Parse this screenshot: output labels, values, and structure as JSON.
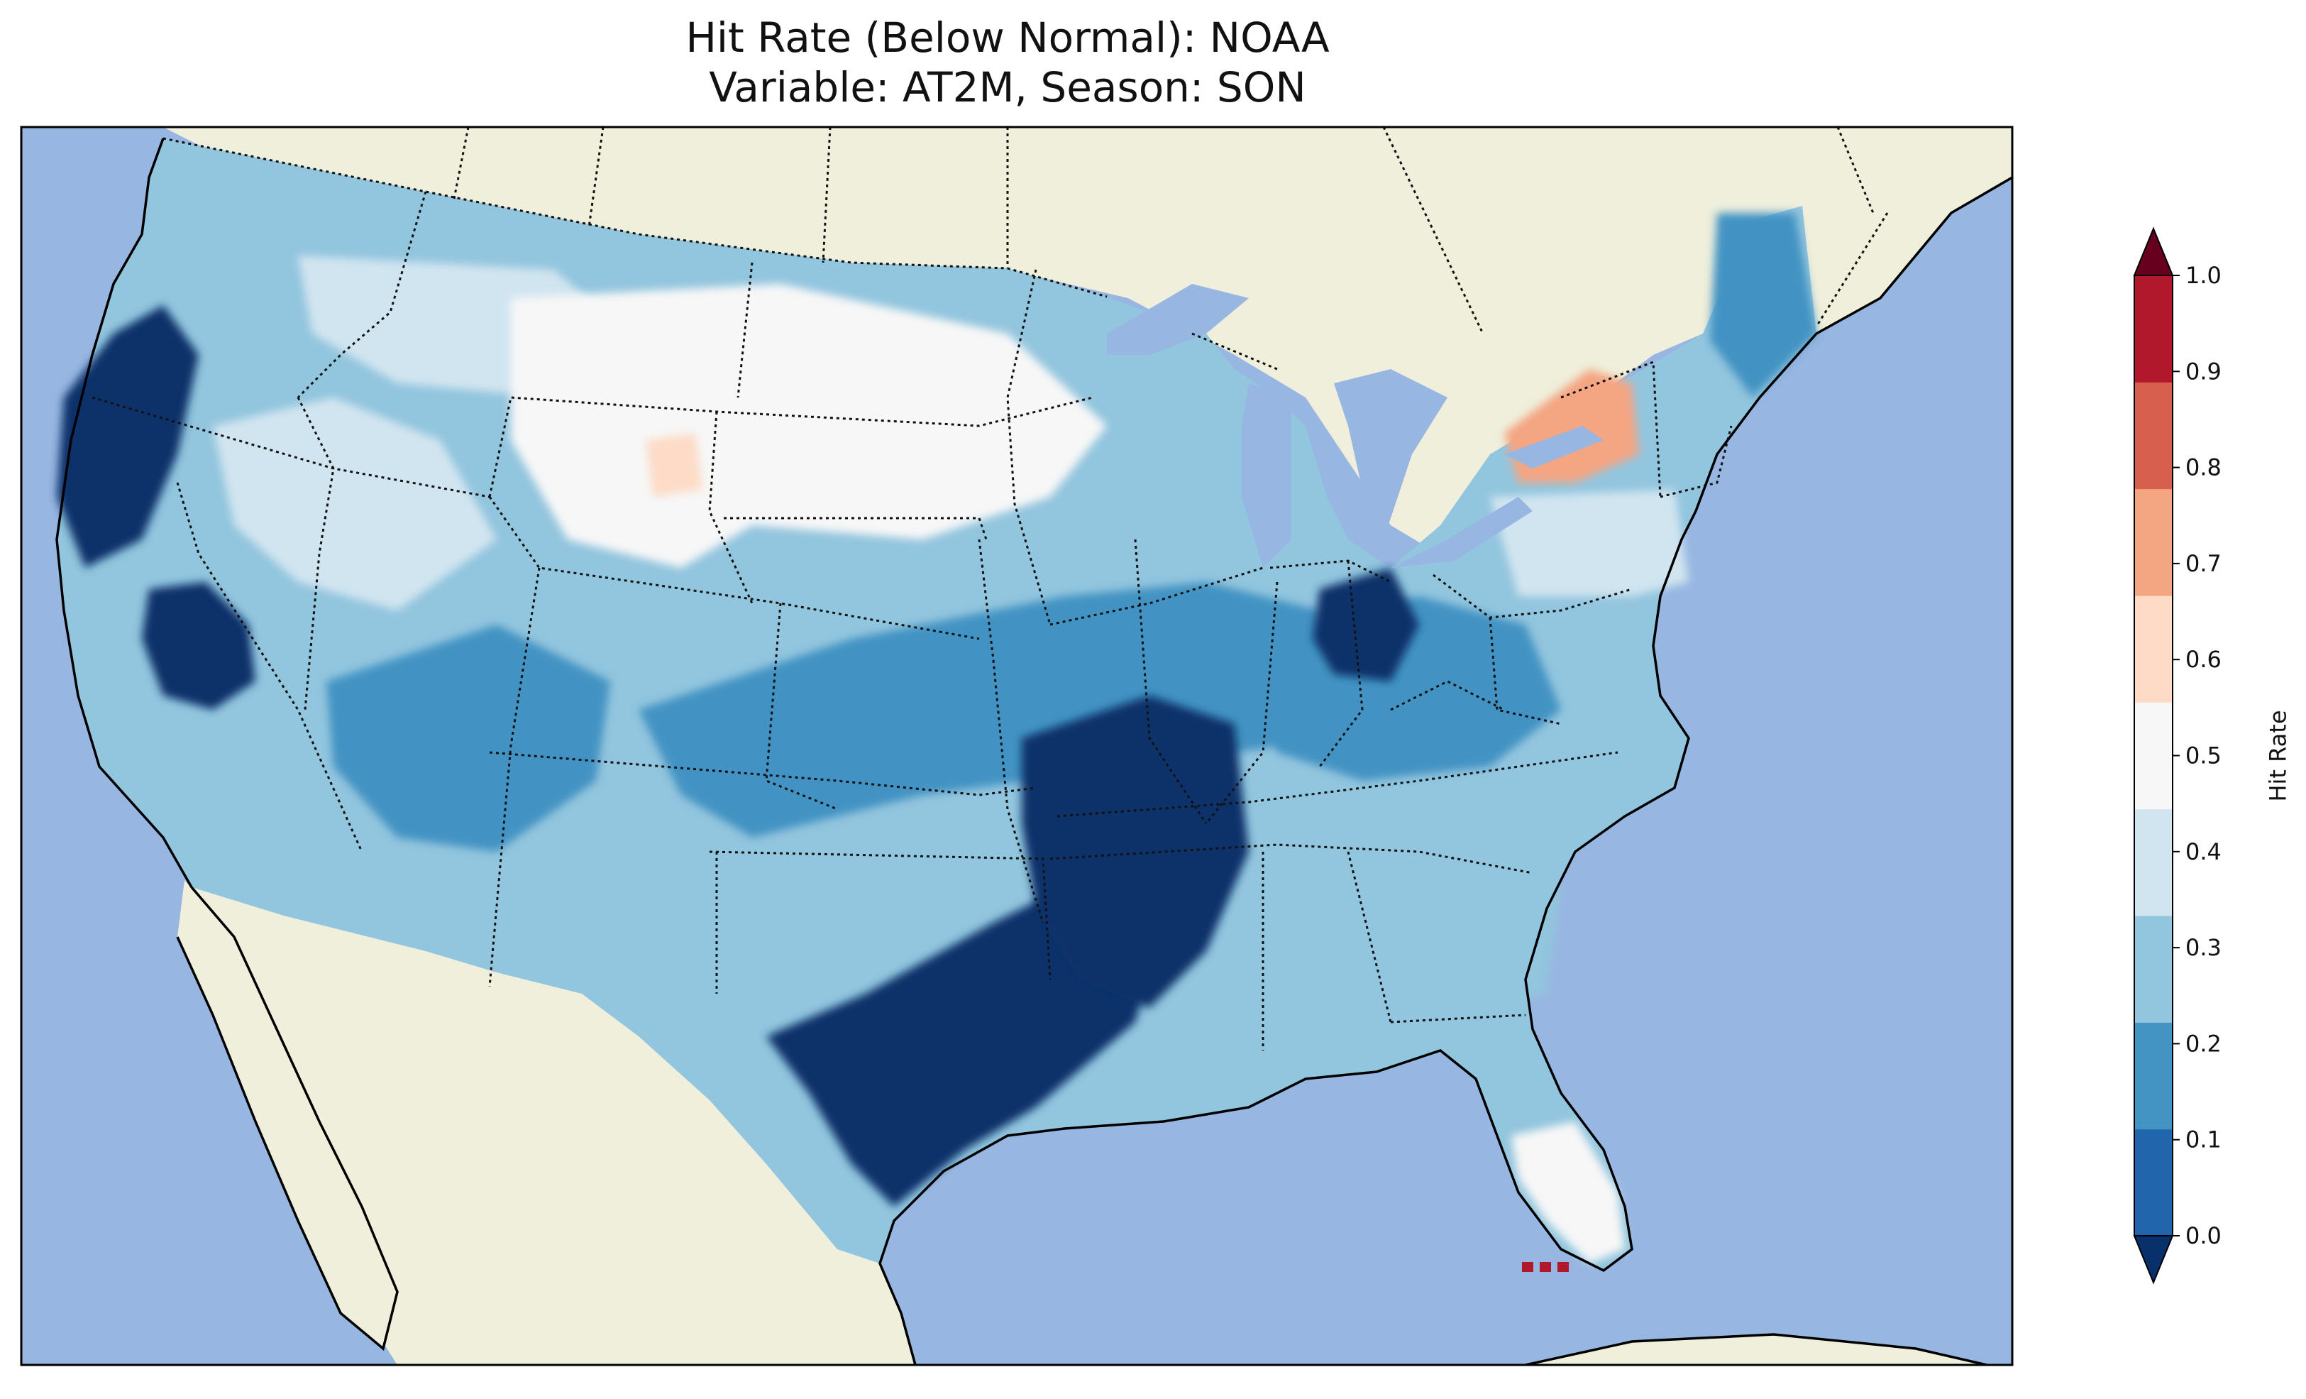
{
  "title_line1": "Hit Rate (Below Normal): NOAA",
  "title_line2": "Variable: AT2M, Season: SON",
  "colorbar": {
    "label": "Hit Rate",
    "ticks": [
      "0.0",
      "0.1",
      "0.2",
      "0.3",
      "0.4",
      "0.5",
      "0.6",
      "0.7",
      "0.8",
      "0.9",
      "1.0"
    ],
    "colors": [
      "#08306b",
      "#2166ac",
      "#4393c3",
      "#92c5de",
      "#d1e5f0",
      "#f7f7f7",
      "#fddbc7",
      "#f4a582",
      "#d6604d",
      "#b2182b",
      "#67001f"
    ],
    "extend": "both"
  },
  "map_colors": {
    "ocean": "#97b6e1",
    "land": "#efefdb"
  },
  "regions": [
    {
      "name": "pacific-northwest-coast",
      "value": 0.05
    },
    {
      "name": "central-valley-california",
      "value": 0.05
    },
    {
      "name": "great-basin",
      "value": 0.45
    },
    {
      "name": "northern-rockies",
      "value": 0.45
    },
    {
      "name": "northern-plains",
      "value": 0.55
    },
    {
      "name": "wyoming-hotspot",
      "value": 0.65
    },
    {
      "name": "southwest",
      "value": 0.25
    },
    {
      "name": "central-plains",
      "value": 0.25
    },
    {
      "name": "texas",
      "value": 0.05
    },
    {
      "name": "lower-mississippi-valley",
      "value": 0.05
    },
    {
      "name": "ohio-valley",
      "value": 0.25
    },
    {
      "name": "indiana-core",
      "value": 0.05
    },
    {
      "name": "southeast",
      "value": 0.35
    },
    {
      "name": "new-york-hotspot",
      "value": 0.75
    },
    {
      "name": "mid-atlantic",
      "value": 0.45
    },
    {
      "name": "new-england",
      "value": 0.25
    },
    {
      "name": "south-florida",
      "value": 0.55
    },
    {
      "name": "florida-keys",
      "value": 0.95
    }
  ]
}
